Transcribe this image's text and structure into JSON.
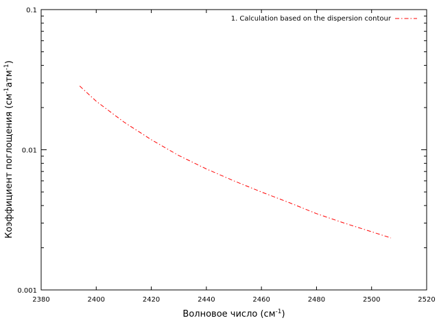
{
  "chart_data": {
    "type": "line",
    "title": "",
    "xlabel": {
      "base": "Волновое число (см",
      "sup": "-1",
      "end": ")"
    },
    "ylabel": {
      "p1": "Коэффициент поглощения (см",
      "s1": "-1",
      "p2": "атм",
      "s2": "-1",
      "p3": ")"
    },
    "xlim": [
      2380,
      2520
    ],
    "ylim": [
      0.001,
      0.1
    ],
    "yscale": "log",
    "grid": false,
    "legend_position": "top-right",
    "xticks": [
      2380,
      2400,
      2420,
      2440,
      2460,
      2480,
      2500,
      2520
    ],
    "xtick_labels": [
      "2380",
      "2400",
      "2420",
      "2440",
      "2460",
      "2480",
      "2500",
      "2520"
    ],
    "yticks": [
      0.001,
      0.01,
      0.1
    ],
    "ytick_labels": [
      "0.001",
      "0.01",
      "0.1"
    ],
    "series": [
      {
        "name": "1. Calculation based on the dispersion contour",
        "color": "#ff0000",
        "dash": "dash-dot",
        "x": [
          2394,
          2400,
          2410,
          2420,
          2430,
          2440,
          2450,
          2460,
          2470,
          2480,
          2490,
          2500,
          2507
        ],
        "y": [
          0.0285,
          0.0222,
          0.0158,
          0.0118,
          0.0091,
          0.0073,
          0.006,
          0.005,
          0.0042,
          0.0035,
          0.003,
          0.0026,
          0.00235
        ]
      }
    ]
  }
}
